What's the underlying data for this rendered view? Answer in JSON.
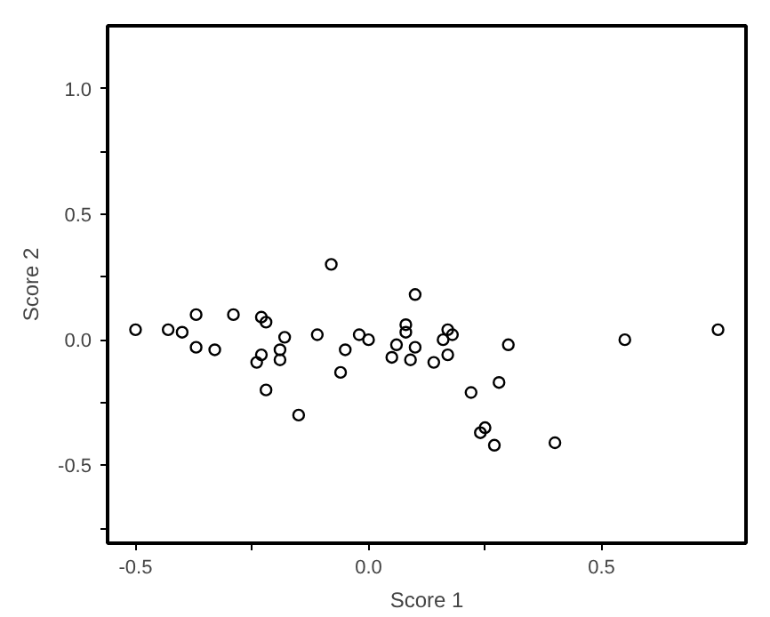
{
  "chart_data": {
    "type": "scatter",
    "xlabel": "Score 1",
    "ylabel": "Score 2",
    "x": [
      -0.5,
      -0.43,
      -0.4,
      -0.37,
      -0.37,
      -0.33,
      -0.29,
      -0.23,
      -0.22,
      -0.23,
      -0.24,
      -0.22,
      -0.18,
      -0.19,
      -0.19,
      -0.15,
      -0.11,
      -0.08,
      -0.06,
      -0.05,
      -0.02,
      0.0,
      0.05,
      0.06,
      0.08,
      0.08,
      0.09,
      0.1,
      0.1,
      0.14,
      0.16,
      0.17,
      0.18,
      0.17,
      0.22,
      0.28,
      0.3,
      0.25,
      0.24,
      0.27,
      0.4,
      0.55,
      0.75
    ],
    "series": [
      {
        "color": "#000000",
        "values": [
          0.04,
          0.04,
          0.03,
          0.1,
          -0.03,
          -0.04,
          0.1,
          0.09,
          0.07,
          -0.06,
          -0.09,
          -0.2,
          0.01,
          -0.04,
          -0.08,
          -0.3,
          0.02,
          0.3,
          -0.13,
          -0.04,
          0.02,
          0.0,
          -0.07,
          -0.02,
          0.06,
          0.03,
          -0.08,
          0.18,
          -0.03,
          -0.09,
          0.0,
          0.04,
          0.02,
          -0.06,
          -0.21,
          -0.17,
          -0.02,
          -0.35,
          -0.37,
          -0.42,
          -0.41,
          0.0,
          0.04
        ]
      }
    ],
    "marker": "circle",
    "grid": false,
    "xlim": [
      -0.56,
      0.81
    ],
    "ylim": [
      -0.81,
      1.25
    ],
    "xticks": [
      -0.5,
      {
        "value": -0.25,
        "label": null
      },
      {
        "value": 0,
        "label": "0.0"
      },
      {
        "value": 0.25,
        "label": null
      },
      0.5
    ],
    "yticks": [
      -0.5,
      {
        "value": -0.75,
        "label": null
      },
      {
        "value": -0.25,
        "label": null
      },
      {
        "value": 0,
        "label": "0.0"
      },
      {
        "value": 0.25,
        "label": null
      },
      0.5,
      {
        "value": 0.75,
        "label": null
      },
      {
        "value": 1,
        "label": "1.0"
      }
    ]
  }
}
